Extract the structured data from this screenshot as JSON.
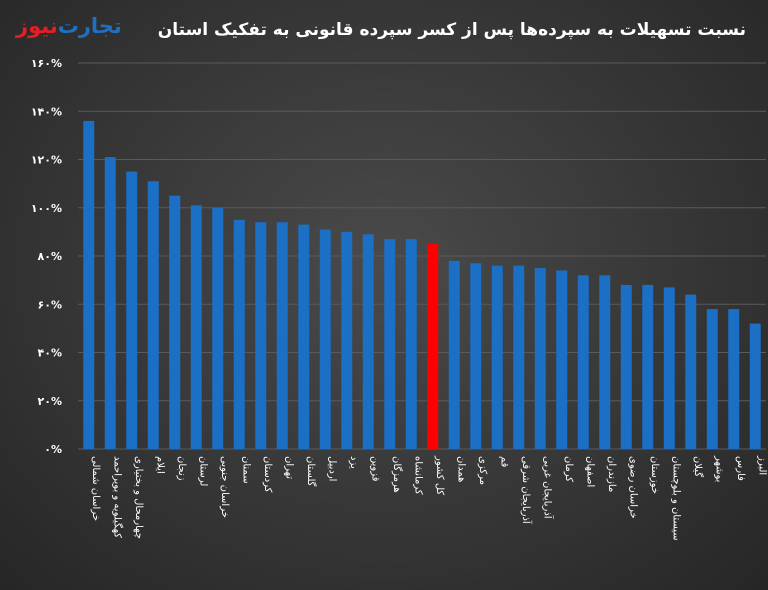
{
  "logo": {
    "part1": "تجارت",
    "part2": "نیوز"
  },
  "chart_data": {
    "type": "bar",
    "title": "نسبت تسهیلات به سپرده‌ها پس از کسر سپرده قانونی به تفکیک استان",
    "ylim": [
      0,
      160
    ],
    "yticks": [
      0,
      20,
      40,
      60,
      80,
      100,
      120,
      140,
      160
    ],
    "ytick_labels": [
      "۰%",
      "۲۰%",
      "۴۰%",
      "۶۰%",
      "۸۰%",
      "۱۰۰%",
      "۱۲۰%",
      "۱۴۰%",
      "۱۶۰%"
    ],
    "grid": true,
    "colors": {
      "bar": "#1b6fc4",
      "highlight": "#ff0000",
      "grid": "#5a5a5a"
    },
    "highlight_category": "کل کشور",
    "categories": [
      "خراسان شمالی",
      "کهگیلویه و بویراحمد",
      "چهارمحال و بختیاری",
      "ایلام",
      "زنجان",
      "لرستان",
      "خراسان جنوبی",
      "سمنان",
      "کردستان",
      "تهران",
      "گلستان",
      "اردبیل",
      "یزد",
      "قزوین",
      "هرمزگان",
      "کرمانشاه",
      "کل کشور",
      "همدان",
      "مرکزی",
      "قم",
      "آذربایجان شرقی",
      "آذربایجان غربی",
      "کرمان",
      "اصفهان",
      "مازندران",
      "خراسان رضوی",
      "خوزستان",
      "سیستان و بلوچستان",
      "گیلان",
      "بوشهر",
      "فارس",
      "البرز"
    ],
    "values": [
      136,
      121,
      115,
      111,
      105,
      101,
      100,
      95,
      94,
      94,
      93,
      91,
      90,
      89,
      87,
      87,
      85,
      78,
      77,
      76,
      76,
      75,
      74,
      72,
      72,
      68,
      68,
      67,
      64,
      58,
      58,
      52
    ]
  }
}
